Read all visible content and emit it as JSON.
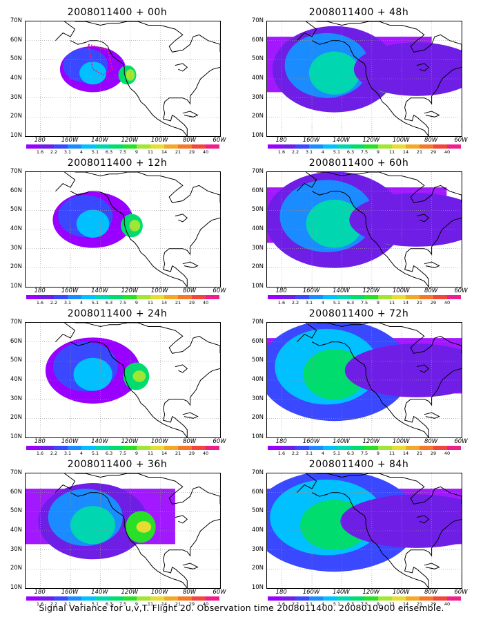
{
  "panels": [
    {
      "title": "2008011400 + 00h",
      "level": 0
    },
    {
      "title": "2008011400 + 48h",
      "level": 4
    },
    {
      "title": "2008011400 + 12h",
      "level": 1
    },
    {
      "title": "2008011400 + 60h",
      "level": 5
    },
    {
      "title": "2008011400 + 24h",
      "level": 2
    },
    {
      "title": "2008011400 + 72h",
      "level": 6
    },
    {
      "title": "2008011400 + 36h",
      "level": 3
    },
    {
      "title": "2008011400 + 84h",
      "level": 7
    }
  ],
  "lat_labels": [
    "70N",
    "60N",
    "50N",
    "40N",
    "30N",
    "20N",
    "10N"
  ],
  "lon_labels": [
    "180",
    "160W",
    "140W",
    "120W",
    "100W",
    "80W",
    "60W"
  ],
  "colorbar": {
    "labels": [
      "1.6",
      "2.2",
      "3.1",
      "4",
      "5.1",
      "6.3",
      "7.5",
      "9",
      "11",
      "14",
      "21",
      "29",
      "40"
    ],
    "colors": [
      "#9900ff",
      "#6f1ee6",
      "#3a48ff",
      "#1a8cff",
      "#00c0ff",
      "#00d6b0",
      "#00dc6e",
      "#28e028",
      "#a0e632",
      "#e6dc32",
      "#f0aa28",
      "#f5782a",
      "#f0463c",
      "#f01e8c"
    ]
  },
  "caption": "Signal Variance for u,v,T. Flight 20. Observation time 2008011400. 2008010900 ensemble."
}
